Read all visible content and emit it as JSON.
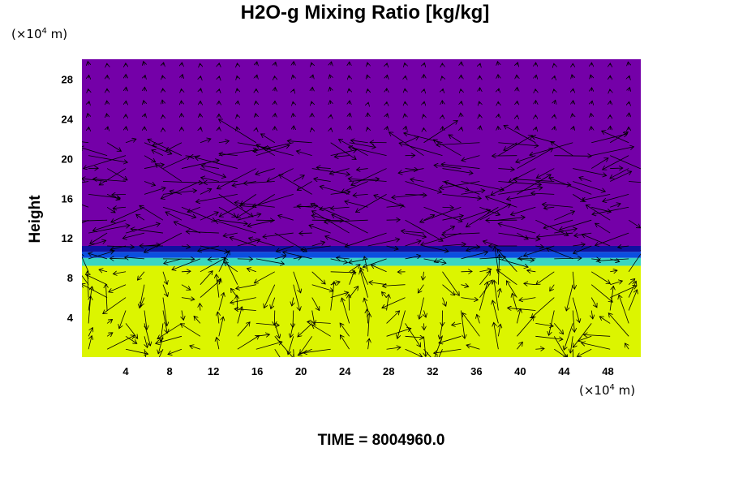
{
  "chart_data": {
    "type": "heatmap",
    "title": "H2O-g Mixing Ratio [kg/kg]",
    "ylabel": "Height",
    "xlabel": "",
    "x_unit": {
      "prefix": "(×10",
      "exp": "4",
      "suffix": " m)"
    },
    "y_unit": {
      "prefix": "(×10",
      "exp": "4",
      "suffix": " m)"
    },
    "xlim": [
      0,
      51
    ],
    "ylim": [
      0,
      30
    ],
    "x_ticks": [
      4,
      8,
      12,
      16,
      20,
      24,
      28,
      32,
      36,
      40,
      44,
      48
    ],
    "y_ticks": [
      4,
      8,
      12,
      16,
      20,
      24,
      28
    ],
    "field_layers": [
      {
        "name": "moist lower layer",
        "y_from": 0,
        "y_to": 9.2,
        "color": "#dcf500"
      },
      {
        "name": "transition",
        "y_from": 9.2,
        "y_to": 10.0,
        "color": "#3ad6c0"
      },
      {
        "name": "transition",
        "y_from": 10.0,
        "y_to": 10.6,
        "color": "#0b4fe0"
      },
      {
        "name": "transition",
        "y_from": 10.6,
        "y_to": 11.2,
        "color": "#1010a0"
      },
      {
        "name": "dry upper layer",
        "y_from": 11.2,
        "y_to": 30,
        "color": "#7400a8"
      }
    ],
    "overlay": "velocity vector field (arrows)",
    "grid": false
  },
  "time_label": "TIME = 8004960.0"
}
